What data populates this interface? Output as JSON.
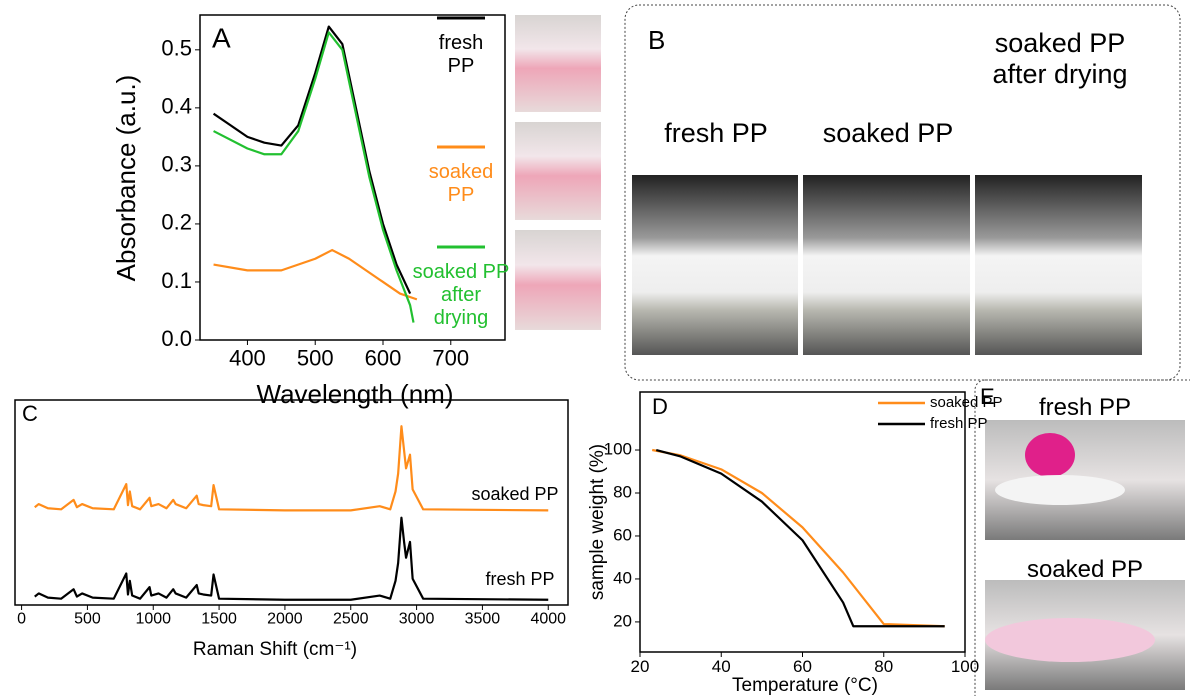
{
  "chart_data": [
    {
      "type": "line",
      "panel_label": "A",
      "x_label": "Wavelength (nm)",
      "y_label": "Absorbance (a.u.)",
      "xlim": [
        330,
        780
      ],
      "xticks": [
        400,
        500,
        600,
        700
      ],
      "ylim": [
        0,
        0.56
      ],
      "yticks": [
        {
          "value": 0,
          "label": "0.0"
        },
        0.1,
        0.2,
        0.3,
        0.4,
        0.5
      ],
      "series": [
        {
          "name": "fresh PP",
          "color": "#000000",
          "x": [
            350,
            375,
            400,
            425,
            450,
            475,
            500,
            520,
            540,
            560,
            580,
            600,
            620,
            640
          ],
          "values": [
            0.39,
            0.37,
            0.35,
            0.34,
            0.335,
            0.37,
            0.46,
            0.54,
            0.51,
            0.4,
            0.29,
            0.2,
            0.13,
            0.08
          ]
        },
        {
          "name": "soaked PP",
          "color": "#ff8c1a",
          "x": [
            350,
            400,
            450,
            500,
            525,
            550,
            575,
            600,
            625,
            650
          ],
          "values": [
            0.13,
            0.12,
            0.12,
            0.14,
            0.155,
            0.14,
            0.12,
            0.1,
            0.08,
            0.07
          ]
        },
        {
          "name": "soaked PP after drying",
          "color": "#22c030",
          "x": [
            350,
            400,
            425,
            450,
            475,
            500,
            520,
            540,
            560,
            580,
            600,
            620,
            640,
            645
          ],
          "values": [
            0.36,
            0.33,
            0.32,
            0.32,
            0.36,
            0.45,
            0.53,
            0.5,
            0.39,
            0.28,
            0.19,
            0.12,
            0.06,
            0.03
          ]
        }
      ]
    },
    {
      "type": "line",
      "panel_label": "C",
      "x_label": "Raman Shift (cm⁻¹)",
      "xlim": [
        -50,
        4150
      ],
      "xticks": [
        0,
        500,
        1000,
        1500,
        2000,
        2500,
        3000,
        3500,
        4000
      ],
      "ylim": [
        -0.05,
        1.9
      ],
      "series": [
        {
          "name": "soaked PP",
          "color": "#ff8c1a",
          "x": [
            100,
            130,
            200,
            300,
            395,
            420,
            460,
            540,
            700,
            795,
            808,
            822,
            840,
            900,
            972,
            985,
            1040,
            1100,
            1152,
            1170,
            1250,
            1330,
            1345,
            1380,
            1440,
            1458,
            1500,
            2000,
            2500,
            2720,
            2800,
            2840,
            2860,
            2885,
            2905,
            2920,
            2950,
            2970,
            3050,
            4000
          ],
          "values": [
            0.88,
            0.91,
            0.87,
            0.86,
            0.95,
            0.88,
            0.91,
            0.87,
            0.86,
            1.1,
            0.9,
            1.03,
            0.89,
            0.86,
            0.97,
            0.89,
            0.91,
            0.87,
            0.95,
            0.91,
            0.87,
            0.99,
            0.91,
            0.9,
            0.89,
            1.09,
            0.86,
            0.85,
            0.85,
            0.89,
            0.86,
            1.03,
            1.2,
            1.65,
            1.42,
            1.25,
            1.38,
            1.05,
            0.86,
            0.85
          ]
        },
        {
          "name": "fresh PP",
          "color": "#000000",
          "x": [
            100,
            130,
            200,
            300,
            395,
            420,
            460,
            540,
            700,
            795,
            808,
            822,
            840,
            900,
            972,
            985,
            1040,
            1100,
            1152,
            1170,
            1250,
            1330,
            1345,
            1380,
            1440,
            1458,
            1500,
            2000,
            2500,
            2720,
            2800,
            2840,
            2860,
            2885,
            2905,
            2920,
            2950,
            2970,
            3050,
            4000
          ],
          "values": [
            0.03,
            0.06,
            0.02,
            0.01,
            0.1,
            0.03,
            0.06,
            0.02,
            0.01,
            0.25,
            0.05,
            0.18,
            0.04,
            0.01,
            0.12,
            0.04,
            0.06,
            0.02,
            0.1,
            0.06,
            0.02,
            0.14,
            0.06,
            0.05,
            0.04,
            0.24,
            0.01,
            0,
            0,
            0.04,
            0.01,
            0.18,
            0.35,
            0.78,
            0.55,
            0.4,
            0.55,
            0.2,
            0.01,
            0
          ]
        }
      ]
    },
    {
      "type": "line",
      "panel_label": "D",
      "x_label": "Temperature (°C)",
      "y_label": "sample weight (%)",
      "xlim": [
        20,
        100
      ],
      "xticks": [
        20,
        40,
        60,
        80,
        100
      ],
      "ylim": [
        6,
        127
      ],
      "yticks": [
        20,
        40,
        60,
        80,
        100
      ],
      "series": [
        {
          "name": "soaked PP",
          "color": "#ff8c1a",
          "x": [
            23,
            30,
            40,
            50,
            60,
            70,
            80,
            95
          ],
          "values": [
            100,
            97.5,
            91,
            80,
            64,
            43,
            19,
            18
          ]
        },
        {
          "name": "fresh PP",
          "color": "#000000",
          "x": [
            24,
            30,
            40,
            50,
            60,
            70,
            72.5,
            95
          ],
          "values": [
            100,
            97,
            89,
            76,
            58,
            29,
            18,
            18
          ]
        }
      ]
    }
  ],
  "panel_b": {
    "label": "B",
    "photos": [
      "fresh PP",
      "soaked PP",
      "soaked PP after drying"
    ]
  },
  "panel_e": {
    "label": "E",
    "photos": [
      "fresh PP",
      "soaked PP"
    ]
  }
}
